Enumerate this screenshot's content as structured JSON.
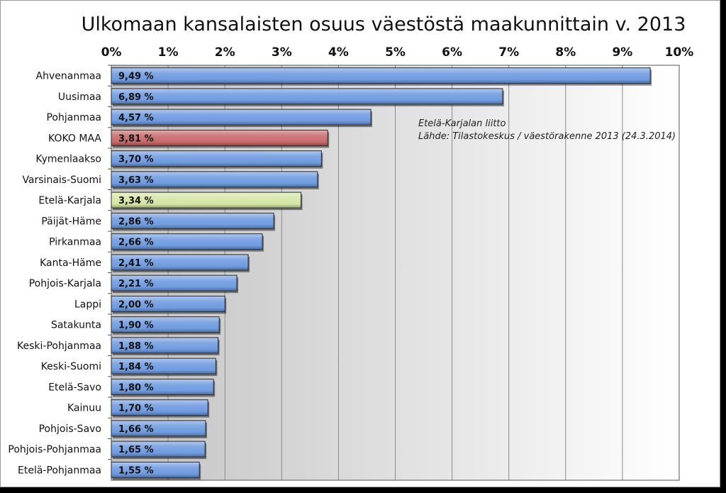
{
  "chart_data": {
    "type": "bar",
    "orientation": "horizontal",
    "title": "Ulkomaan kansalaisten osuus väestöstä maakunnittain v. 2013",
    "xlabel": "",
    "ylabel": "",
    "xlim": [
      0,
      10
    ],
    "x_tick_labels": [
      "0%",
      "1%",
      "2%",
      "3%",
      "4%",
      "5%",
      "6%",
      "7%",
      "8%",
      "9%",
      "10%"
    ],
    "x_axis_position": "top",
    "grid": true,
    "legend": "none",
    "categories": [
      "Ahvenanmaa",
      "Uusimaa",
      "Pohjanmaa",
      "KOKO MAA",
      "Kymenlaakso",
      "Varsinais-Suomi",
      "Etelä-Karjala",
      "Päijät-Häme",
      "Pirkanmaa",
      "Kanta-Häme",
      "Pohjois-Karjala",
      "Lappi",
      "Satakunta",
      "Keski-Pohjanmaa",
      "Keski-Suomi",
      "Etelä-Savo",
      "Kainuu",
      "Pohjois-Savo",
      "Pohjois-Pohjanmaa",
      "Etelä-Pohjanmaa"
    ],
    "values": [
      9.49,
      6.89,
      4.57,
      3.81,
      3.7,
      3.63,
      3.34,
      2.86,
      2.66,
      2.41,
      2.21,
      2.0,
      1.9,
      1.88,
      1.84,
      1.8,
      1.7,
      1.66,
      1.65,
      1.55
    ],
    "value_labels": [
      "9,49 %",
      "6,89 %",
      "4,57 %",
      "3,81 %",
      "3,70 %",
      "3,63 %",
      "3,34 %",
      "2,86 %",
      "2,66 %",
      "2,41 %",
      "2,21 %",
      "2,00 %",
      "1,90 %",
      "1,88 %",
      "1,84 %",
      "1,80 %",
      "1,70 %",
      "1,66 %",
      "1,65 %",
      "1,55 %"
    ],
    "highlight": {
      "KOKO MAA": "#c96a6a",
      "Etelä-Karjala": "#d4e6a5"
    },
    "bar_color": "#6f9be0",
    "annotation": [
      "Etelä-Karjalan liitto",
      "Lähde: Tilastokeskus / väestörakenne 2013  (24.3.2014)"
    ]
  }
}
